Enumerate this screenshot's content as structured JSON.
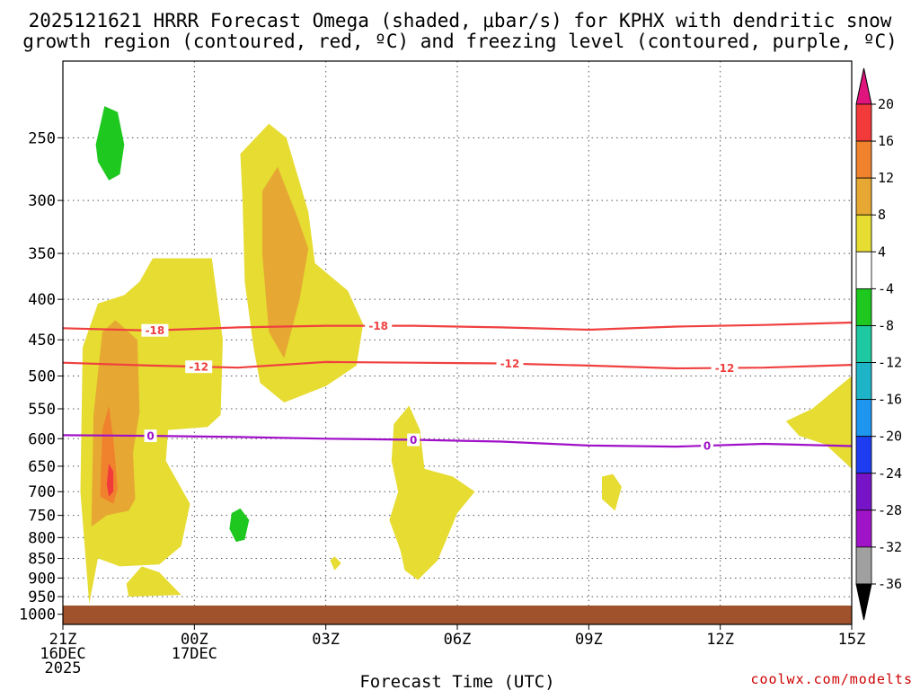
{
  "chart_data": {
    "type": "time-height contour",
    "title_line1": "2025121621 HRRR Forecast Omega (shaded, μbar/s) for KPHX with dendritic snow",
    "title_line2": "growth region (contoured, red, ºC) and freezing level (contoured, purple, ºC)",
    "xlabel": "Forecast Time (UTC)",
    "credit": "coolwx.com/modelts",
    "x_ticks": [
      {
        "t": 0,
        "lines": [
          "21Z",
          "16DEC",
          "2025"
        ]
      },
      {
        "t": 3,
        "lines": [
          "00Z",
          "17DEC"
        ]
      },
      {
        "t": 6,
        "lines": [
          "03Z"
        ]
      },
      {
        "t": 9,
        "lines": [
          "06Z"
        ]
      },
      {
        "t": 12,
        "lines": [
          "09Z"
        ]
      },
      {
        "t": 15,
        "lines": [
          "12Z"
        ]
      },
      {
        "t": 18,
        "lines": [
          "15Z"
        ]
      }
    ],
    "x_range_hours": [
      0,
      18
    ],
    "y_ticks": [
      250,
      300,
      350,
      400,
      450,
      500,
      550,
      600,
      650,
      700,
      750,
      800,
      850,
      900,
      950,
      1000
    ],
    "y_range_hPa": [
      200,
      1030
    ],
    "surface_level_hPa": 975,
    "colorbar": {
      "labels": [
        "20",
        "16",
        "12",
        "8",
        "4",
        "-4",
        "-8",
        "-12",
        "-16",
        "-20",
        "-24",
        "-28",
        "-32",
        "-36"
      ],
      "colors": [
        "#f23a3a",
        "#f0822e",
        "#e6a832",
        "#e6dc32",
        "#ffffff",
        "#1ec81e",
        "#1ec8a0",
        "#1eb4c8",
        "#1e96f0",
        "#1e3cf0",
        "#7814c8",
        "#a014c8",
        "#a0a0a0"
      ],
      "top_arrow_color": "#e0147d",
      "bottom_arrow_color": "#000000"
    },
    "shading_colors": {
      "pos4": "#e6dc32",
      "pos8": "#e6a832",
      "pos12": "#f0822e",
      "pos16": "#f23a3a",
      "neg4": "#1ec81e",
      "ground": "#a0522d"
    },
    "omega_regions": [
      {
        "level": "pos4",
        "points": [
          [
            0.6,
            970
          ],
          [
            0.4,
            700
          ],
          [
            0.45,
            460
          ],
          [
            0.8,
            405
          ],
          [
            1.4,
            395
          ],
          [
            1.75,
            380
          ],
          [
            2.05,
            355
          ],
          [
            3.4,
            355
          ],
          [
            3.65,
            450
          ],
          [
            3.6,
            560
          ],
          [
            3.3,
            580
          ],
          [
            2.4,
            585
          ],
          [
            2.35,
            640
          ],
          [
            2.9,
            725
          ],
          [
            2.7,
            820
          ],
          [
            2.2,
            865
          ],
          [
            1.3,
            870
          ],
          [
            0.8,
            850
          ]
        ]
      },
      {
        "level": "pos4",
        "points": [
          [
            1.45,
            915
          ],
          [
            1.8,
            870
          ],
          [
            2.2,
            885
          ],
          [
            2.7,
            945
          ],
          [
            1.5,
            950
          ]
        ]
      },
      {
        "level": "pos4",
        "points": [
          [
            4.05,
            262
          ],
          [
            4.7,
            240
          ],
          [
            5.1,
            250
          ],
          [
            5.6,
            310
          ],
          [
            5.75,
            360
          ],
          [
            6.5,
            390
          ],
          [
            6.85,
            430
          ],
          [
            6.7,
            485
          ],
          [
            6.0,
            515
          ],
          [
            5.05,
            540
          ],
          [
            4.5,
            510
          ],
          [
            4.35,
            460
          ],
          [
            4.15,
            380
          ],
          [
            4.1,
            300
          ]
        ]
      },
      {
        "level": "pos4",
        "points": [
          [
            6.1,
            855
          ],
          [
            6.2,
            845
          ],
          [
            6.35,
            862
          ],
          [
            6.2,
            880
          ]
        ]
      },
      {
        "level": "pos4",
        "points": [
          [
            7.55,
            575
          ],
          [
            7.9,
            545
          ],
          [
            8.15,
            585
          ],
          [
            8.25,
            655
          ],
          [
            8.9,
            670
          ],
          [
            9.4,
            700
          ],
          [
            9.0,
            745
          ],
          [
            8.55,
            855
          ],
          [
            8.1,
            905
          ],
          [
            7.8,
            880
          ],
          [
            7.7,
            830
          ],
          [
            7.45,
            760
          ],
          [
            7.65,
            700
          ],
          [
            7.5,
            640
          ]
        ]
      },
      {
        "level": "pos4",
        "points": [
          [
            12.55,
            665
          ],
          [
            12.75,
            690
          ],
          [
            12.6,
            740
          ],
          [
            12.3,
            715
          ],
          [
            12.3,
            670
          ]
        ]
      },
      {
        "level": "pos4",
        "points": [
          [
            16.5,
            570
          ],
          [
            17.1,
            550
          ],
          [
            18,
            500
          ],
          [
            18,
            655
          ],
          [
            17.4,
            610
          ],
          [
            16.8,
            595
          ]
        ]
      },
      {
        "level": "pos8",
        "points": [
          [
            0.65,
            775
          ],
          [
            0.7,
            560
          ],
          [
            0.9,
            440
          ],
          [
            1.2,
            425
          ],
          [
            1.7,
            450
          ],
          [
            1.75,
            555
          ],
          [
            1.6,
            625
          ],
          [
            1.65,
            715
          ],
          [
            1.5,
            740
          ],
          [
            1.0,
            750
          ]
        ]
      },
      {
        "level": "pos8",
        "points": [
          [
            4.55,
            292
          ],
          [
            4.9,
            272
          ],
          [
            5.35,
            315
          ],
          [
            5.6,
            345
          ],
          [
            5.4,
            400
          ],
          [
            5.05,
            475
          ],
          [
            4.7,
            440
          ],
          [
            4.55,
            350
          ]
        ]
      },
      {
        "level": "pos12",
        "points": [
          [
            0.85,
            710
          ],
          [
            0.9,
            585
          ],
          [
            1.05,
            545
          ],
          [
            1.15,
            600
          ],
          [
            1.25,
            695
          ],
          [
            1.15,
            725
          ]
        ]
      },
      {
        "level": "pos16",
        "points": [
          [
            1.0,
            685
          ],
          [
            1.05,
            645
          ],
          [
            1.15,
            660
          ],
          [
            1.15,
            700
          ],
          [
            1.05,
            710
          ]
        ]
      },
      {
        "level": "neg4",
        "points": [
          [
            0.75,
            255
          ],
          [
            0.95,
            228
          ],
          [
            1.25,
            232
          ],
          [
            1.4,
            255
          ],
          [
            1.3,
            278
          ],
          [
            1.05,
            283
          ],
          [
            0.8,
            268
          ]
        ]
      },
      {
        "level": "neg4",
        "points": [
          [
            3.85,
            745
          ],
          [
            4.05,
            735
          ],
          [
            4.25,
            760
          ],
          [
            4.15,
            805
          ],
          [
            3.95,
            810
          ],
          [
            3.8,
            780
          ]
        ]
      }
    ],
    "contours": [
      {
        "name": "-18",
        "color": "#f04040",
        "label_hours": [
          2.1,
          7.2
        ],
        "points": [
          [
            0,
            435
          ],
          [
            2,
            438
          ],
          [
            4,
            434
          ],
          [
            6,
            432
          ],
          [
            8,
            432
          ],
          [
            10,
            434
          ],
          [
            12,
            437
          ],
          [
            14,
            433
          ],
          [
            16,
            431
          ],
          [
            18,
            428
          ]
        ]
      },
      {
        "name": "-12",
        "color": "#f04040",
        "label_hours": [
          3.1,
          10.2,
          15.1
        ],
        "points": [
          [
            0,
            481
          ],
          [
            2,
            485
          ],
          [
            4,
            488
          ],
          [
            6,
            480
          ],
          [
            8,
            481
          ],
          [
            10,
            482
          ],
          [
            12,
            485
          ],
          [
            14,
            489
          ],
          [
            16,
            488
          ],
          [
            18,
            484
          ]
        ]
      },
      {
        "name": "0",
        "color": "#a010c8",
        "label_hours": [
          2.0,
          8.0,
          14.7
        ],
        "points": [
          [
            0,
            594
          ],
          [
            2,
            595
          ],
          [
            4,
            597
          ],
          [
            6,
            600
          ],
          [
            8,
            602
          ],
          [
            10,
            605
          ],
          [
            12,
            612
          ],
          [
            14,
            614
          ],
          [
            16,
            609
          ],
          [
            18,
            613
          ]
        ]
      }
    ]
  }
}
